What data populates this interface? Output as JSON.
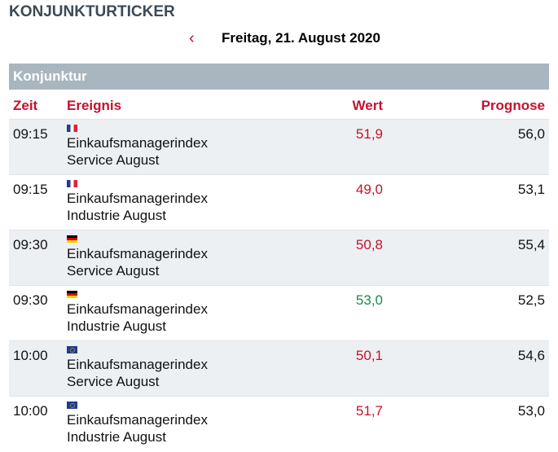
{
  "title": "KONJUNKTURTICKER",
  "date_nav": {
    "prev_icon": "chevron-left-icon",
    "date": "Freitag, 21. August 2020"
  },
  "section": "Konjunktur",
  "columns": {
    "time": "Zeit",
    "event": "Ereignis",
    "value": "Wert",
    "forecast": "Prognose"
  },
  "colors": {
    "accent": "#c4122f",
    "positive": "#1e8a4c",
    "header_bg": "#a9b6c0"
  },
  "rows": [
    {
      "time": "09:15",
      "flag": "fr",
      "event1": "Einkaufsmanagerindex",
      "event2": "Service August",
      "value": "51,9",
      "value_color": "red",
      "forecast": "56,0"
    },
    {
      "time": "09:15",
      "flag": "fr",
      "event1": "Einkaufsmanagerindex",
      "event2": "Industrie August",
      "value": "49,0",
      "value_color": "red",
      "forecast": "53,1"
    },
    {
      "time": "09:30",
      "flag": "de",
      "event1": "Einkaufsmanagerindex",
      "event2": "Service August",
      "value": "50,8",
      "value_color": "red",
      "forecast": "55,4"
    },
    {
      "time": "09:30",
      "flag": "de",
      "event1": "Einkaufsmanagerindex",
      "event2": "Industrie August",
      "value": "53,0",
      "value_color": "green",
      "forecast": "52,5"
    },
    {
      "time": "10:00",
      "flag": "eu",
      "event1": "Einkaufsmanagerindex",
      "event2": "Service August",
      "value": "50,1",
      "value_color": "red",
      "forecast": "54,6"
    },
    {
      "time": "10:00",
      "flag": "eu",
      "event1": "Einkaufsmanagerindex",
      "event2": "Industrie August",
      "value": "51,7",
      "value_color": "red",
      "forecast": "53,0"
    }
  ]
}
